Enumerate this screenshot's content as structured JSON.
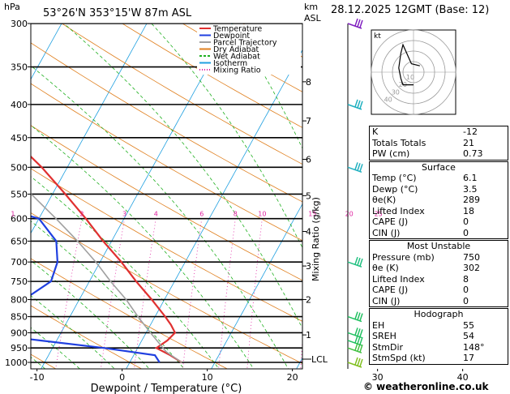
{
  "header": {
    "location": "53°26'N  353°15'W  87m  ASL",
    "datetime": "28.12.2025  12GMT  (Base: 12)"
  },
  "axes": {
    "left_unit": "hPa",
    "right_unit_top": "km",
    "right_unit_bottom": "ASL",
    "xlabel": "Dewpoint / Temperature (°C)",
    "mixing_ratio_label": "Mixing Ratio (g/kg)",
    "lcl_label": "LCL"
  },
  "legend": [
    {
      "label": "Temperature",
      "color": "#e03030"
    },
    {
      "label": "Dewpoint",
      "color": "#2040e0"
    },
    {
      "label": "Parcel Trajectory",
      "color": "#a0a0a0"
    },
    {
      "label": "Dry Adiabat",
      "color": "#e08020"
    },
    {
      "label": "Wet Adiabat",
      "color": "#20b020"
    },
    {
      "label": "Isotherm",
      "color": "#20a0e0"
    },
    {
      "label": "Mixing Ratio",
      "color": "#e020a0"
    }
  ],
  "chart_data": {
    "type": "line",
    "title": "",
    "pressure_levels": [
      300,
      350,
      400,
      450,
      500,
      550,
      600,
      650,
      700,
      750,
      800,
      850,
      900,
      950,
      1000
    ],
    "temperature_ticks": [
      -30,
      -20,
      -10,
      0,
      10,
      20,
      30,
      40
    ],
    "xlim": [
      -35,
      40
    ],
    "ylim": [
      1050,
      300
    ],
    "skew_note": "skew-T log-p",
    "km_ticks": [
      {
        "km": 1,
        "p": 907
      },
      {
        "km": 2,
        "p": 800
      },
      {
        "km": 3,
        "p": 710
      },
      {
        "km": 4,
        "p": 628
      },
      {
        "km": 5,
        "p": 553
      },
      {
        "km": 6,
        "p": 486
      },
      {
        "km": 7,
        "p": 424
      },
      {
        "km": 8,
        "p": 369
      }
    ],
    "mixing_ratio_values": [
      1,
      2,
      3,
      4,
      6,
      8,
      10,
      15,
      20,
      25
    ],
    "series": [
      {
        "name": "Temperature",
        "color": "#e03030",
        "points": [
          [
            1000,
            6.1
          ],
          [
            975,
            4.3
          ],
          [
            950,
            2.2
          ],
          [
            925,
            3.0
          ],
          [
            900,
            3.4
          ],
          [
            875,
            2.4
          ],
          [
            850,
            1.2
          ],
          [
            800,
            -1.5
          ],
          [
            750,
            -4.5
          ],
          [
            700,
            -7.5
          ],
          [
            650,
            -11.0
          ],
          [
            600,
            -14.5
          ],
          [
            550,
            -18.5
          ],
          [
            500,
            -23.0
          ],
          [
            450,
            -28.5
          ],
          [
            400,
            -34.5
          ],
          [
            350,
            -41.0
          ],
          [
            300,
            -48.0
          ]
        ]
      },
      {
        "name": "Dewpoint",
        "color": "#2040e0",
        "points": [
          [
            1000,
            3.5
          ],
          [
            975,
            2.5
          ],
          [
            950,
            -4.0
          ],
          [
            925,
            -12.0
          ],
          [
            900,
            -20.0
          ],
          [
            850,
            -18.0
          ],
          [
            800,
            -16.5
          ],
          [
            750,
            -14.5
          ],
          [
            700,
            -15.0
          ],
          [
            650,
            -16.5
          ],
          [
            600,
            -20.0
          ],
          [
            550,
            -32.0
          ],
          [
            500,
            -38.0
          ],
          [
            450,
            -37.0
          ],
          [
            400,
            -40.0
          ],
          [
            350,
            -46.0
          ],
          [
            300,
            -53.0
          ]
        ]
      },
      {
        "name": "Parcel Trajectory",
        "color": "#a0a0a0",
        "points": [
          [
            1000,
            6.1
          ],
          [
            963,
            3.6
          ],
          [
            900,
            0.5
          ],
          [
            850,
            -2.0
          ],
          [
            800,
            -4.5
          ],
          [
            750,
            -7.5
          ],
          [
            700,
            -10.5
          ],
          [
            650,
            -14.0
          ],
          [
            600,
            -18.0
          ],
          [
            550,
            -22.5
          ],
          [
            500,
            -27.5
          ],
          [
            450,
            -33.0
          ],
          [
            400,
            -39.5
          ],
          [
            350,
            -47.0
          ],
          [
            300,
            -55.5
          ]
        ]
      }
    ]
  },
  "hodograph": {
    "label": "kt",
    "ring_labels": [
      "10",
      "20",
      "30",
      "40"
    ],
    "points": [
      [
        0,
        -6
      ],
      [
        -3,
        -6
      ],
      [
        -5,
        -6
      ],
      [
        -6,
        -3
      ],
      [
        -7,
        2
      ],
      [
        -6,
        9
      ],
      [
        -5,
        13
      ],
      [
        -1,
        4
      ],
      [
        3,
        3
      ]
    ]
  },
  "stats": {
    "top": [
      {
        "label": "K",
        "value": "-12"
      },
      {
        "label": "Totals Totals",
        "value": "21"
      },
      {
        "label": "PW (cm)",
        "value": "0.73"
      }
    ],
    "surface": {
      "title": "Surface",
      "rows": [
        {
          "label": "Temp (°C)",
          "value": "6.1"
        },
        {
          "label": "Dewp (°C)",
          "value": "3.5"
        },
        {
          "label": "θe(K)",
          "value": "289"
        },
        {
          "label": "Lifted Index",
          "value": "18"
        },
        {
          "label": "CAPE (J)",
          "value": "0"
        },
        {
          "label": "CIN (J)",
          "value": "0"
        }
      ]
    },
    "most_unstable": {
      "title": "Most Unstable",
      "rows": [
        {
          "label": "Pressure (mb)",
          "value": "750"
        },
        {
          "label": "θe (K)",
          "value": "302"
        },
        {
          "label": "Lifted Index",
          "value": "8"
        },
        {
          "label": "CAPE (J)",
          "value": "0"
        },
        {
          "label": "CIN (J)",
          "value": "0"
        }
      ]
    },
    "hodograph": {
      "title": "Hodograph",
      "rows": [
        {
          "label": "EH",
          "value": "55"
        },
        {
          "label": "SREH",
          "value": "54"
        },
        {
          "label": "StmDir",
          "value": "148°"
        },
        {
          "label": "StmSpd (kt)",
          "value": "17"
        }
      ]
    }
  },
  "wind_barbs": [
    {
      "p": 300,
      "color": "#8020c0"
    },
    {
      "p": 400,
      "color": "#20b0c0"
    },
    {
      "p": 500,
      "color": "#20b0c0"
    },
    {
      "p": 700,
      "color": "#20c080"
    },
    {
      "p": 850,
      "color": "#20c060"
    },
    {
      "p": 900,
      "color": "#20c060"
    },
    {
      "p": 925,
      "color": "#20c060"
    },
    {
      "p": 950,
      "color": "#40c040"
    },
    {
      "p": 1000,
      "color": "#80c020"
    }
  ],
  "footer": "© weatheronline.co.uk"
}
